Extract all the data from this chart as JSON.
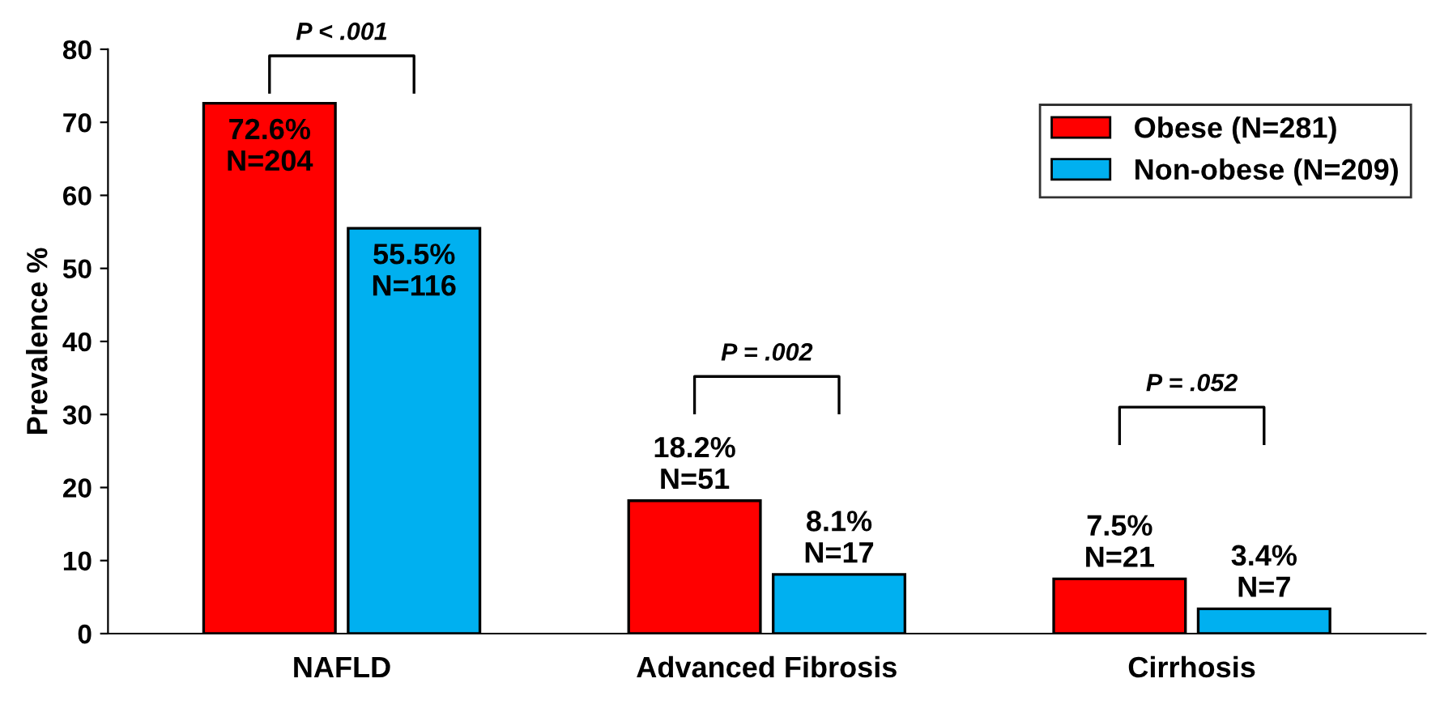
{
  "chart_data": {
    "type": "bar",
    "ylabel": "Prevalence %",
    "categories": [
      "NAFLD",
      "Advanced Fibrosis",
      "Cirrhosis"
    ],
    "series": [
      {
        "name": "Obese (N=281)",
        "color": "#ff0000",
        "values": [
          72.6,
          18.2,
          7.5
        ],
        "value_labels": [
          "72.6%\nN=204",
          "18.2%\nN=51",
          "7.5%\nN=21"
        ]
      },
      {
        "name": "Non-obese (N=209)",
        "color": "#00b0f0",
        "values": [
          55.5,
          8.1,
          3.4
        ],
        "value_labels": [
          "55.5%\nN=116",
          "8.1%\nN=17",
          "3.4%\nN=7"
        ]
      }
    ],
    "ylim": [
      0,
      80
    ],
    "yticks": [
      0,
      10,
      20,
      30,
      40,
      50,
      60,
      70,
      80
    ],
    "grid": false,
    "legend": "top right",
    "annotations": [
      "P < .001",
      "P = .002",
      "P = .052"
    ]
  }
}
